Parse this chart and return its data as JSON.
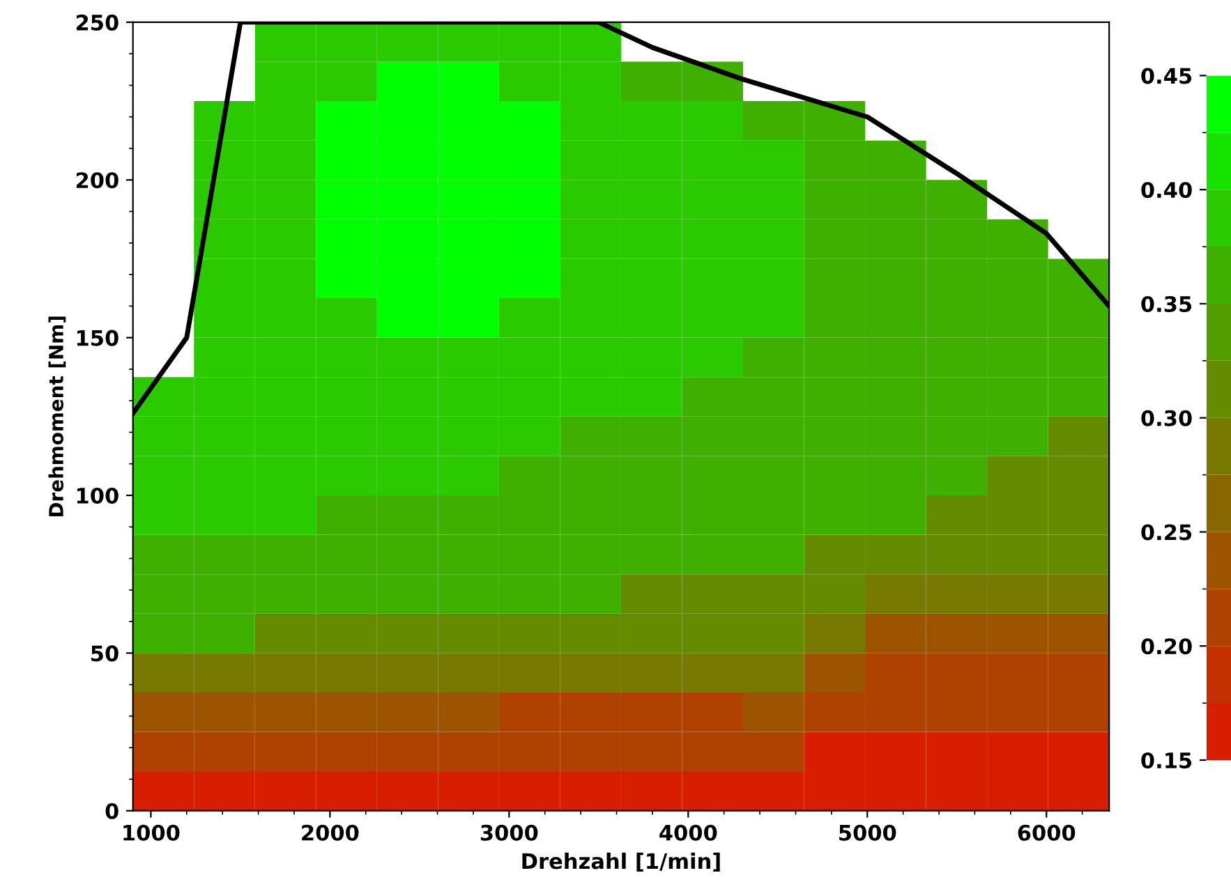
{
  "chart_data": {
    "type": "heatmap",
    "xlabel": "Drehzahl [1/min]",
    "ylabel": "Drehmoment [Nm]",
    "xlim": [
      900,
      6350
    ],
    "ylim": [
      0,
      250
    ],
    "xticks": [
      1000,
      2000,
      3000,
      4000,
      5000,
      6000
    ],
    "yticks": [
      0,
      50,
      100,
      150,
      200,
      250
    ],
    "clim": [
      0.15,
      0.45
    ],
    "cticks": [
      0.15,
      {
        "value": 0.2,
        "label": "0.20"
      },
      0.25,
      {
        "value": 0.3,
        "label": "0.30"
      },
      0.35,
      {
        "value": 0.4,
        "label": "0.40"
      },
      0.45
    ],
    "cells": [
      [
        null,
        null,
        0.39,
        0.39,
        0.39,
        0.39,
        0.39,
        0.39,
        null,
        null,
        null,
        null,
        null,
        null,
        null,
        null
      ],
      [
        null,
        null,
        0.39,
        0.39,
        0.43,
        0.43,
        0.39,
        0.39,
        0.37,
        0.37,
        null,
        null,
        null,
        null,
        null,
        null
      ],
      [
        null,
        0.39,
        0.39,
        0.43,
        0.43,
        0.43,
        0.43,
        0.39,
        0.39,
        0.39,
        0.37,
        0.37,
        null,
        null,
        null,
        null
      ],
      [
        null,
        0.39,
        0.39,
        0.43,
        0.43,
        0.43,
        0.43,
        0.39,
        0.39,
        0.39,
        0.39,
        0.37,
        0.37,
        null,
        null,
        null
      ],
      [
        null,
        0.39,
        0.39,
        0.43,
        0.43,
        0.43,
        0.43,
        0.39,
        0.39,
        0.39,
        0.39,
        0.37,
        0.37,
        0.37,
        null,
        null
      ],
      [
        null,
        0.39,
        0.39,
        0.43,
        0.43,
        0.43,
        0.43,
        0.39,
        0.39,
        0.39,
        0.39,
        0.37,
        0.37,
        0.37,
        0.37,
        null
      ],
      [
        null,
        0.39,
        0.39,
        0.43,
        0.43,
        0.43,
        0.43,
        0.39,
        0.39,
        0.39,
        0.39,
        0.37,
        0.37,
        0.37,
        0.37,
        0.37
      ],
      [
        null,
        0.39,
        0.39,
        0.39,
        0.43,
        0.43,
        0.39,
        0.39,
        0.39,
        0.39,
        0.39,
        0.37,
        0.37,
        0.37,
        0.37,
        0.37
      ],
      [
        null,
        0.39,
        0.39,
        0.39,
        0.39,
        0.39,
        0.39,
        0.39,
        0.39,
        0.39,
        0.37,
        0.37,
        0.37,
        0.37,
        0.37,
        0.37
      ],
      [
        0.39,
        0.39,
        0.39,
        0.39,
        0.39,
        0.39,
        0.39,
        0.39,
        0.39,
        0.37,
        0.37,
        0.37,
        0.37,
        0.37,
        0.37,
        0.37
      ],
      [
        0.39,
        0.39,
        0.39,
        0.39,
        0.39,
        0.39,
        0.39,
        0.37,
        0.37,
        0.37,
        0.37,
        0.37,
        0.37,
        0.37,
        0.37,
        0.32
      ],
      [
        0.39,
        0.39,
        0.39,
        0.39,
        0.39,
        0.39,
        0.37,
        0.37,
        0.37,
        0.37,
        0.37,
        0.37,
        0.37,
        0.37,
        0.32,
        0.32
      ],
      [
        0.39,
        0.39,
        0.39,
        0.37,
        0.37,
        0.37,
        0.37,
        0.37,
        0.37,
        0.37,
        0.37,
        0.37,
        0.37,
        0.32,
        0.32,
        0.32
      ],
      [
        0.37,
        0.37,
        0.37,
        0.37,
        0.37,
        0.37,
        0.37,
        0.37,
        0.37,
        0.37,
        0.37,
        0.32,
        0.32,
        0.32,
        0.32,
        0.32
      ],
      [
        0.37,
        0.37,
        0.37,
        0.37,
        0.37,
        0.37,
        0.37,
        0.37,
        0.32,
        0.32,
        0.32,
        0.32,
        0.28,
        0.28,
        0.28,
        0.28
      ],
      [
        0.37,
        0.37,
        0.32,
        0.32,
        0.32,
        0.32,
        0.32,
        0.32,
        0.32,
        0.32,
        0.32,
        0.28,
        0.24,
        0.24,
        0.24,
        0.24
      ],
      [
        0.28,
        0.28,
        0.28,
        0.28,
        0.28,
        0.28,
        0.28,
        0.28,
        0.28,
        0.28,
        0.28,
        0.24,
        0.21,
        0.21,
        0.21,
        0.21
      ],
      [
        0.24,
        0.24,
        0.24,
        0.24,
        0.24,
        0.24,
        0.21,
        0.21,
        0.21,
        0.21,
        0.24,
        0.21,
        0.21,
        0.21,
        0.21,
        0.21
      ],
      [
        0.21,
        0.21,
        0.21,
        0.21,
        0.21,
        0.21,
        0.21,
        0.21,
        0.21,
        0.21,
        0.21,
        0.16,
        0.16,
        0.16,
        0.16,
        0.16
      ],
      [
        0.16,
        0.16,
        0.16,
        0.16,
        0.16,
        0.16,
        0.16,
        0.16,
        0.16,
        0.16,
        0.16,
        0.16,
        0.16,
        0.16,
        0.16,
        0.16
      ]
    ],
    "series": [
      {
        "type": "line",
        "color": "#000000",
        "x": [
          900,
          1200,
          1500,
          3500,
          3800,
          4300,
          5000,
          5500,
          6000,
          6350
        ],
        "values": [
          126,
          150,
          250,
          250,
          242,
          232,
          220,
          202,
          183,
          160
        ]
      }
    ]
  }
}
